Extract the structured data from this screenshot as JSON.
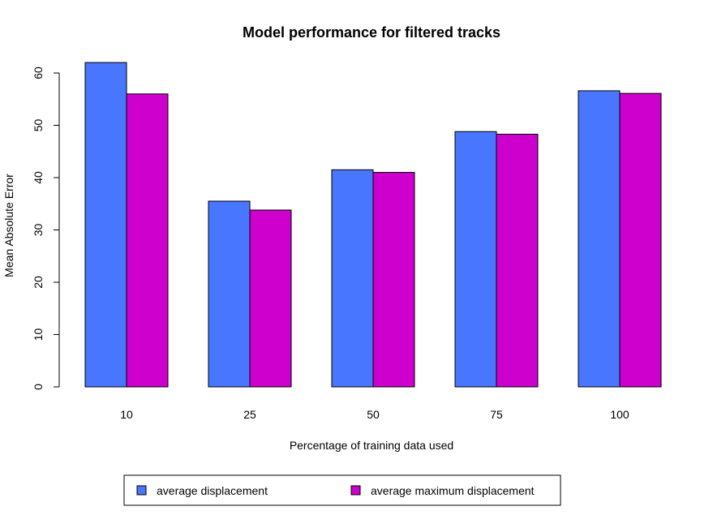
{
  "chart_data": {
    "type": "bar",
    "title": "Model performance for filtered tracks",
    "xlabel": "Percentage of training data used",
    "ylabel": "Mean Absolute Error",
    "categories": [
      "10",
      "25",
      "50",
      "75",
      "100"
    ],
    "ylim": [
      0,
      60
    ],
    "yticks": [
      "0",
      "10",
      "20",
      "30",
      "40",
      "50",
      "60"
    ],
    "grid": false,
    "legend_position": "bottom",
    "series": [
      {
        "name": "average displacement",
        "color": "#4876FF",
        "values": [
          62.0,
          35.5,
          41.5,
          48.8,
          56.6
        ]
      },
      {
        "name": "average maximum displacement",
        "color": "#CD00CD",
        "values": [
          56.0,
          33.8,
          41.0,
          48.3,
          56.1
        ]
      }
    ]
  }
}
